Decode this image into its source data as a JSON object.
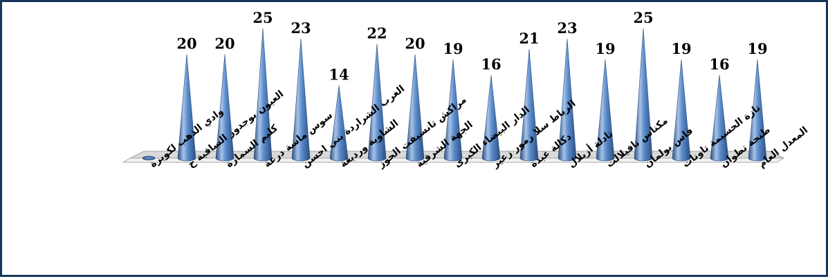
{
  "chart_data": {
    "type": "bar",
    "bar_shape": "cone",
    "categories": [
      "وادي الذهب لكويرة",
      "العيون بوجدور الساقية ح",
      "كليم السمارة",
      "سوس ماسة درعة",
      "الغرب الشراردة بني احسن",
      "الشاوية ورديغة",
      "مراكش تانسيفت الحوز",
      "الجهة الشرقية",
      "الدار البيضاء الكبرى",
      "الرباط سلا زمور زعير",
      "دكالة عبدة",
      "تادلة أزيلال",
      "مكناس تافيلالت",
      "فاس بولمان",
      "تازة الحسيمة تاونات",
      "طنجة تطوان",
      "المعدل العام"
    ],
    "values": [
      0,
      20,
      20,
      25,
      23,
      14,
      22,
      20,
      19,
      16,
      21,
      23,
      19,
      25,
      19,
      16,
      19
    ],
    "data_labels": [
      "",
      "20",
      "20",
      "25",
      "23",
      "14",
      "22",
      "20",
      "19",
      "16",
      "21",
      "23",
      "19",
      "25",
      "19",
      "16",
      "19"
    ],
    "ylim": [
      0,
      25
    ],
    "grid": false,
    "legend": "none",
    "colors": {
      "bar": "#4f81bd",
      "bar_dark": "#2b4f80",
      "bar_light": "#a7c2e6",
      "floor": "#d9d9d9",
      "frame": "#17365d"
    }
  }
}
